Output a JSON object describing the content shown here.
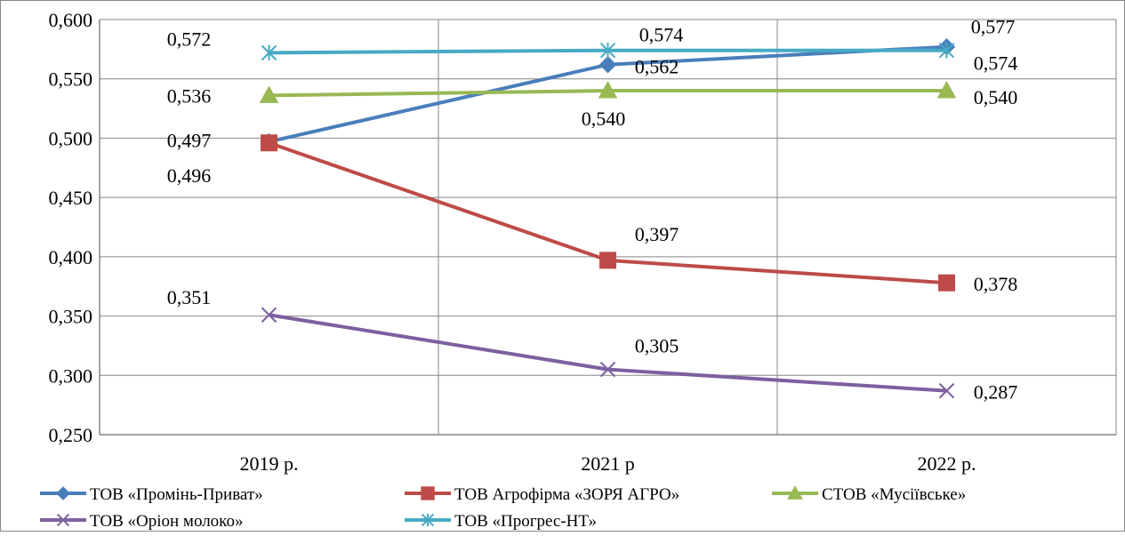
{
  "chart_data": {
    "type": "line",
    "categories": [
      "2019 р.",
      "2021 р",
      "2022 р."
    ],
    "ylim": [
      0.25,
      0.6
    ],
    "y_ticks": [
      0.25,
      0.3,
      0.35,
      0.4,
      0.45,
      0.5,
      0.55,
      0.6
    ],
    "y_tick_labels": [
      "0,250",
      "0,300",
      "0,350",
      "0,400",
      "0,450",
      "0,500",
      "0,550",
      "0,600"
    ],
    "grid": true,
    "legend_position": "bottom",
    "series": [
      {
        "name": "ТОВ «Промінь-Приват»",
        "color": "#4A7EBB",
        "marker": "diamond",
        "values": [
          0.497,
          0.562,
          0.577
        ],
        "labels": [
          "0,497",
          "0,562",
          "0,577"
        ]
      },
      {
        "name": "ТОВ Агрофірма «ЗОРЯ АГРО»",
        "color": "#BE4B48",
        "marker": "square",
        "values": [
          0.496,
          0.397,
          0.378
        ],
        "labels": [
          "0,496",
          "0,397",
          "0,378"
        ]
      },
      {
        "name": "СТОВ «Мусіївське»",
        "color": "#98B954",
        "marker": "triangle",
        "values": [
          0.536,
          0.54,
          0.54
        ],
        "labels": [
          "0,536",
          "0,540",
          "0,540"
        ]
      },
      {
        "name": "ТОВ «Оріон молоко»",
        "color": "#7D60A0",
        "marker": "x",
        "values": [
          0.351,
          0.305,
          0.287
        ],
        "labels": [
          "0,351",
          "0,305",
          "0,287"
        ]
      },
      {
        "name": "ТОВ «Прогрес-НТ»",
        "color": "#46AAC5",
        "marker": "star",
        "values": [
          0.572,
          0.574,
          0.574
        ],
        "labels": [
          "0,572",
          "0,574",
          "0,574"
        ]
      }
    ]
  }
}
